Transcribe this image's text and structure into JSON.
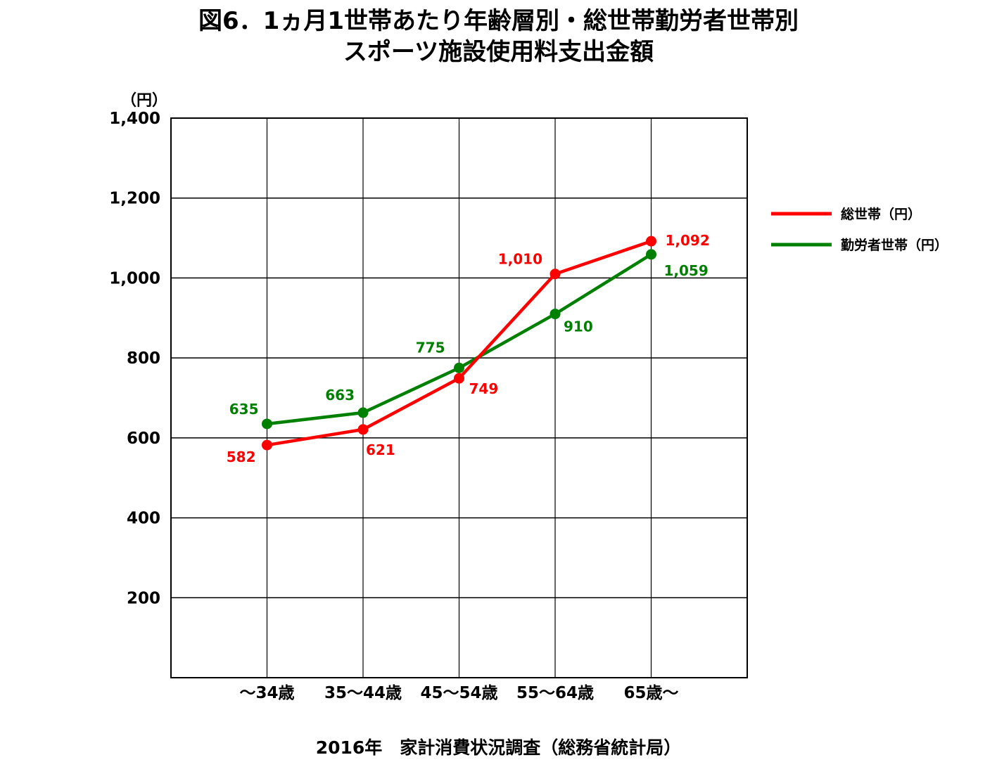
{
  "title_line1": "図6．1ヵ月1世帯あたり年齢層別・総世帯勤労者世帯別",
  "title_line2": "スポーツ施設使用料支出金額",
  "source": "2016年　家計消費状況調査（総務省統計局）",
  "chart_data": {
    "type": "line",
    "unit_label": "（円）",
    "categories": [
      "～34歳",
      "35～44歳",
      "45～54歳",
      "55～64歳",
      "65歳～"
    ],
    "y_ticks": [
      "200",
      "400",
      "600",
      "800",
      "1,000",
      "1,200",
      "1,400"
    ],
    "ylim": [
      0,
      1400
    ],
    "grid": true,
    "legend_position": "right",
    "series": [
      {
        "name": "総世帯（円）",
        "color": "#ff0000",
        "values": [
          582,
          621,
          749,
          1010,
          1092
        ],
        "labels": [
          "582",
          "621",
          "749",
          "1,010",
          "1,092"
        ]
      },
      {
        "name": "勤労者世帯（円）",
        "color": "#008000",
        "values": [
          635,
          663,
          775,
          910,
          1059
        ],
        "labels": [
          "635",
          "663",
          "775",
          "910",
          "1,059"
        ]
      }
    ]
  }
}
